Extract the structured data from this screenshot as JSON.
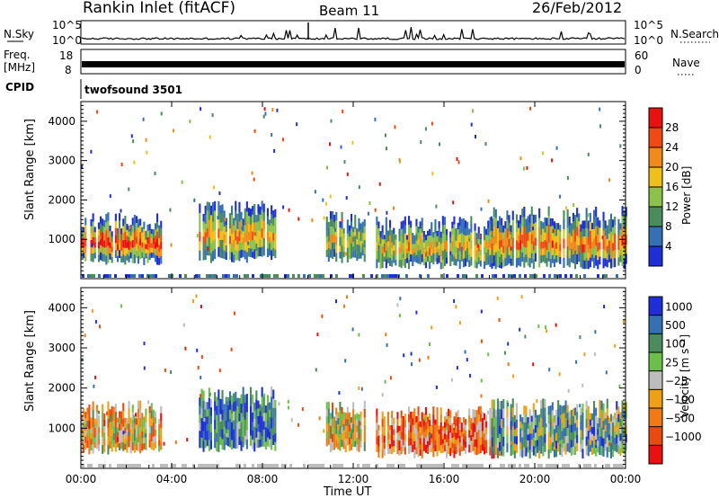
{
  "header": {
    "station": "Rankin Inlet (fitACF)",
    "beam": "Beam 11",
    "date": "26/Feb/2012"
  },
  "strips": {
    "nsky_label": "N.Sky",
    "nsky_ticks": [
      "10^5",
      "10^0"
    ],
    "nsearch_label": "N.Search",
    "nsearch_ticks": [
      "10^5",
      "10^0"
    ],
    "freq_label_1": "Freq.",
    "freq_label_2": "[MHz]",
    "freq_ticks": [
      "18",
      "8"
    ],
    "nave_label": "Nave",
    "nave_ticks": [
      "60",
      "0"
    ],
    "cpid_label": "CPID",
    "cpid_value": "twofsound 3501"
  },
  "chart_data": [
    {
      "type": "heatmap",
      "name": "power",
      "ylabel": "Slant Range [km]",
      "y_ticks": [
        "1000",
        "2000",
        "3000",
        "4000"
      ],
      "colorbar_label": "Power [dB]",
      "colorbar_ticks": [
        "4",
        "8",
        "12",
        "16",
        "20",
        "24",
        "28"
      ],
      "colors": [
        "#1f2fd8",
        "#3570b4",
        "#4a8c5c",
        "#8bc34a",
        "#f0c01a",
        "#f08a1a",
        "#f04a14",
        "#e81010"
      ],
      "bands": [
        {
          "x0": 0.0,
          "x1": 3.5,
          "y0": 450,
          "y1": 1450,
          "core": 0.78
        },
        {
          "x0": 5.2,
          "x1": 8.6,
          "y0": 500,
          "y1": 1750,
          "core": 0.55
        },
        {
          "x0": 10.8,
          "x1": 12.5,
          "y0": 500,
          "y1": 1500,
          "core": 0.4
        },
        {
          "x0": 13.0,
          "x1": 18.5,
          "y0": 350,
          "y1": 1350,
          "core": 0.48
        },
        {
          "x0": 18.0,
          "x1": 24.0,
          "y0": 350,
          "y1": 1600,
          "core": 0.62
        }
      ]
    },
    {
      "type": "heatmap",
      "name": "velocity",
      "ylabel": "Slant Range [km]",
      "y_ticks": [
        "1000",
        "2000",
        "3000",
        "4000"
      ],
      "colorbar_label": "Velocity [m s⁻¹]",
      "colorbar_ticks": [
        "1000",
        "500",
        "100",
        "25",
        "−25",
        "−100",
        "−500",
        "−1000"
      ],
      "colors": [
        "#1f2fd8",
        "#3570b4",
        "#4a8c5c",
        "#6cc04a",
        "#bdbdbd",
        "#f0a018",
        "#f07a14",
        "#e84a10",
        "#e81010"
      ],
      "bands": [
        {
          "x0": 0.0,
          "x1": 3.5,
          "y0": 450,
          "y1": 1450,
          "bias": 0.6
        },
        {
          "x0": 5.2,
          "x1": 8.6,
          "y0": 500,
          "y1": 1800,
          "bias": 0.2
        },
        {
          "x0": 10.8,
          "x1": 12.5,
          "y0": 500,
          "y1": 1500,
          "bias": 0.5
        },
        {
          "x0": 13.0,
          "x1": 18.5,
          "y0": 350,
          "y1": 1300,
          "bias": 0.75
        },
        {
          "x0": 18.0,
          "x1": 24.0,
          "y0": 350,
          "y1": 1500,
          "bias": 0.35
        }
      ]
    }
  ],
  "x_axis": {
    "label": "Time UT",
    "ticks": [
      "00:00",
      "04:00",
      "08:00",
      "12:00",
      "16:00",
      "20:00",
      "00:00"
    ]
  }
}
